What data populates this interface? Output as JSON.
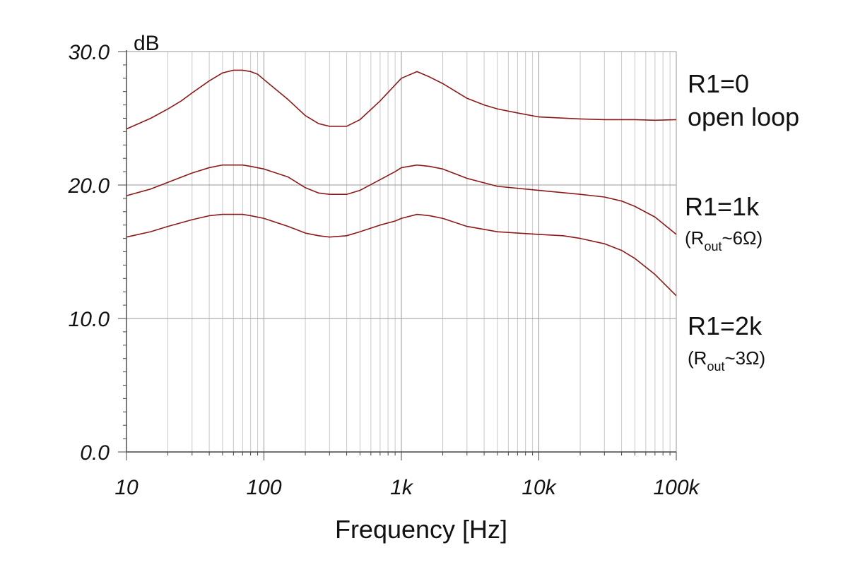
{
  "chart_data": {
    "type": "line",
    "x_scale": "log",
    "xlim": [
      10,
      100000
    ],
    "ylim": [
      0,
      30
    ],
    "grid": true,
    "xlabel": "Frequency [Hz]",
    "ylabel": "dB",
    "x_ticks": [
      {
        "value": 10,
        "label": "10"
      },
      {
        "value": 100,
        "label": "100"
      },
      {
        "value": 1000,
        "label": "1k"
      },
      {
        "value": 10000,
        "label": "10k"
      },
      {
        "value": 100000,
        "label": "100k"
      }
    ],
    "y_ticks": [
      {
        "value": 0,
        "label": "0.0"
      },
      {
        "value": 10,
        "label": "10.0"
      },
      {
        "value": 20,
        "label": "20.0"
      },
      {
        "value": 30,
        "label": "30.0"
      }
    ],
    "line_color": "#8b1a1a",
    "series": [
      {
        "x": [
          10,
          15,
          20,
          25,
          30,
          40,
          50,
          60,
          70,
          80,
          90,
          100,
          150,
          200,
          250,
          300,
          350,
          400,
          500,
          700,
          1000,
          1300,
          1600,
          2000,
          3000,
          4000,
          5000,
          7000,
          10000,
          20000,
          30000,
          50000,
          70000,
          100000
        ],
        "y": [
          24.2,
          25.0,
          25.7,
          26.3,
          26.9,
          27.8,
          28.4,
          28.6,
          28.6,
          28.5,
          28.3,
          27.9,
          26.4,
          25.2,
          24.6,
          24.4,
          24.4,
          24.4,
          24.9,
          26.3,
          28.0,
          28.5,
          28.1,
          27.6,
          26.5,
          26.0,
          25.7,
          25.4,
          25.1,
          24.95,
          24.9,
          24.9,
          24.85,
          24.9
        ]
      },
      {
        "x": [
          10,
          15,
          20,
          30,
          40,
          50,
          60,
          70,
          80,
          100,
          150,
          200,
          250,
          300,
          400,
          500,
          700,
          900,
          1000,
          1300,
          1600,
          2000,
          3000,
          5000,
          10000,
          20000,
          30000,
          40000,
          50000,
          70000,
          100000
        ],
        "y": [
          19.2,
          19.7,
          20.2,
          20.9,
          21.3,
          21.5,
          21.5,
          21.5,
          21.4,
          21.2,
          20.6,
          19.8,
          19.4,
          19.3,
          19.3,
          19.6,
          20.4,
          21.0,
          21.3,
          21.5,
          21.4,
          21.2,
          20.5,
          19.9,
          19.6,
          19.3,
          19.1,
          18.8,
          18.4,
          17.6,
          16.3
        ]
      },
      {
        "x": [
          10,
          15,
          20,
          30,
          40,
          50,
          60,
          70,
          80,
          100,
          150,
          200,
          250,
          300,
          400,
          500,
          700,
          900,
          1000,
          1300,
          1600,
          2000,
          3000,
          5000,
          10000,
          15000,
          20000,
          30000,
          40000,
          50000,
          70000,
          100000
        ],
        "y": [
          16.1,
          16.5,
          16.9,
          17.4,
          17.7,
          17.8,
          17.8,
          17.8,
          17.7,
          17.5,
          16.9,
          16.4,
          16.2,
          16.1,
          16.2,
          16.5,
          17.0,
          17.3,
          17.5,
          17.8,
          17.7,
          17.5,
          16.9,
          16.5,
          16.3,
          16.2,
          16.0,
          15.6,
          15.1,
          14.5,
          13.3,
          11.7
        ]
      }
    ],
    "annotations": [
      {
        "lines": [
          {
            "main": "R1=0"
          },
          {
            "main": "open loop"
          }
        ]
      },
      {
        "lines": [
          {
            "main": "R1=1k"
          },
          {
            "sub_prefix": "(R",
            "subscript": "out",
            "sub_suffix": "~6Ω)"
          }
        ]
      },
      {
        "lines": [
          {
            "main": "R1=2k"
          },
          {
            "sub_prefix": "(R",
            "subscript": "out",
            "sub_suffix": "~3Ω)"
          }
        ]
      }
    ]
  }
}
